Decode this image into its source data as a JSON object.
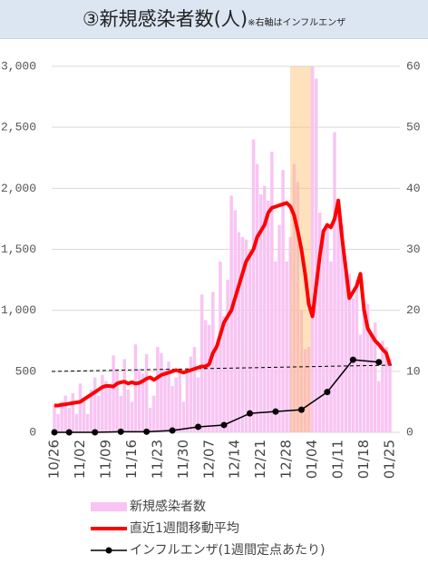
{
  "chart_data": {
    "type": "combo",
    "title": "③新規感染者数(人)",
    "subtitle": "※右軸はインフルエンザ",
    "categories": [
      "10/26",
      null,
      null,
      null,
      null,
      null,
      null,
      "11/02",
      null,
      null,
      null,
      null,
      null,
      null,
      "11/09",
      null,
      null,
      null,
      null,
      null,
      null,
      "11/16",
      null,
      null,
      null,
      null,
      null,
      null,
      "11/23",
      null,
      null,
      null,
      null,
      null,
      null,
      "11/30",
      null,
      null,
      null,
      null,
      null,
      null,
      "12/07",
      null,
      null,
      null,
      null,
      null,
      null,
      "12/14",
      null,
      null,
      null,
      null,
      null,
      null,
      "12/21",
      null,
      null,
      null,
      null,
      null,
      null,
      "12/28",
      null,
      null,
      null,
      null,
      null,
      null,
      "01/04",
      null,
      null,
      null,
      null,
      null,
      null,
      "01/11",
      null,
      null,
      null,
      null,
      null,
      null,
      "01/18",
      null,
      null,
      null,
      null,
      null,
      null,
      "01/25"
    ],
    "ylim": [
      0,
      3000
    ],
    "yticks": [
      0,
      500,
      {
        "value": 1000,
        "label": "1,000"
      },
      {
        "value": 1500,
        "label": "1,500"
      },
      {
        "value": 2000,
        "label": "2,000"
      },
      {
        "value": 2500,
        "label": "2,500"
      },
      {
        "value": 3000,
        "label": "3,000"
      }
    ],
    "y2lim": [
      0,
      60
    ],
    "y2ticks": [
      0,
      10,
      20,
      30,
      40,
      50,
      60
    ],
    "grid": true,
    "series": [
      {
        "name": "新規感染者数",
        "type": "bar",
        "color": "#f8c4f3",
        "values": [
          230,
          150,
          250,
          300,
          200,
          320,
          150,
          400,
          280,
          150,
          350,
          450,
          300,
          470,
          420,
          380,
          630,
          520,
          300,
          600,
          350,
          250,
          720,
          520,
          480,
          640,
          200,
          300,
          700,
          650,
          520,
          580,
          380,
          450,
          520,
          250,
          480,
          620,
          700,
          450,
          1130,
          920,
          880,
          1150,
          700,
          1400,
          950,
          1250,
          1940,
          1820,
          1640,
          1600,
          1580,
          1500,
          2400,
          2200,
          1950,
          2020,
          1900,
          2300,
          1400,
          1700,
          2150,
          1400,
          1600,
          2200,
          2050,
          1000,
          680,
          700,
          3000,
          2900,
          1800,
          1650,
          1700,
          1400,
          2460,
          1900,
          1700,
          1400,
          1300,
          1100,
          1250,
          800,
          1000,
          1050,
          800,
          900,
          420,
          750,
          700,
          600
        ]
      },
      {
        "name": "直近1週間移動平均",
        "type": "line",
        "color": "#ff0000",
        "values": [
          220,
          220,
          225,
          230,
          235,
          240,
          245,
          250,
          270,
          290,
          310,
          330,
          350,
          370,
          380,
          380,
          375,
          400,
          410,
          415,
          400,
          410,
          400,
          405,
          420,
          440,
          450,
          430,
          450,
          470,
          480,
          490,
          500,
          510,
          500,
          490,
          500,
          510,
          520,
          530,
          540,
          540,
          560,
          650,
          700,
          800,
          900,
          950,
          1000,
          1100,
          1200,
          1300,
          1400,
          1450,
          1500,
          1600,
          1650,
          1700,
          1800,
          1840,
          1850,
          1860,
          1870,
          1880,
          1850,
          1780,
          1650,
          1500,
          1300,
          1050,
          950,
          1200,
          1450,
          1650,
          1700,
          1680,
          1750,
          1900,
          1600,
          1350,
          1100,
          1150,
          1200,
          1300,
          1000,
          850,
          800,
          750,
          720,
          680,
          650,
          550
        ]
      },
      {
        "name": "インフルエンザ(1週間定点あたり)",
        "type": "marker-line",
        "axis": "y2",
        "color": "#000000",
        "values": [
          0,
          null,
          null,
          null,
          0,
          null,
          null,
          null,
          null,
          null,
          null,
          0,
          null,
          null,
          null,
          null,
          null,
          null,
          0.1,
          null,
          null,
          null,
          null,
          null,
          null,
          0.1,
          null,
          null,
          null,
          null,
          null,
          null,
          0.3,
          null,
          null,
          null,
          null,
          null,
          null,
          0.9,
          null,
          null,
          null,
          null,
          null,
          null,
          1.2,
          null,
          null,
          null,
          null,
          null,
          null,
          3.1,
          null,
          null,
          null,
          null,
          null,
          null,
          3.4,
          null,
          null,
          null,
          null,
          null,
          null,
          3.7,
          null,
          null,
          null,
          null,
          null,
          null,
          6.6,
          null,
          null,
          null,
          null,
          null,
          null,
          11.9,
          null,
          null,
          null,
          null,
          null,
          null,
          11.5,
          null,
          null,
          null
        ]
      }
    ]
  }
}
